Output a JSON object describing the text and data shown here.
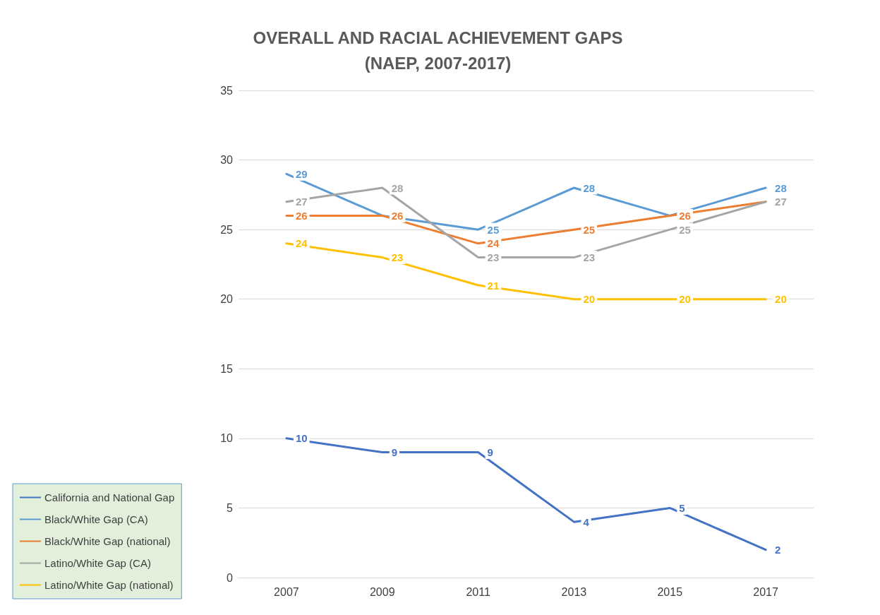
{
  "chart_data": {
    "type": "line",
    "title": "OVERALL AND RACIAL ACHIEVEMENT GAPS\n(NAEP, 2007-2017)",
    "categories": [
      "2007",
      "2009",
      "2011",
      "2013",
      "2015",
      "2017"
    ],
    "series": [
      {
        "name": "California and National Gap",
        "color": "#4472c4",
        "values": [
          10,
          9,
          9,
          4,
          5,
          2
        ],
        "value_labels": [
          "10",
          "9",
          "9",
          "4",
          "5",
          "2"
        ]
      },
      {
        "name": "Black/White Gap (CA)",
        "color": "#5b9bd5",
        "values": [
          29,
          26,
          25,
          28,
          26,
          28
        ],
        "value_labels": [
          "29",
          null,
          "25",
          "28",
          null,
          "28"
        ]
      },
      {
        "name": "Black/White Gap (national)",
        "color": "#ed7d31",
        "values": [
          26,
          26,
          24,
          25,
          26,
          27
        ],
        "value_labels": [
          "26",
          "26",
          "24",
          "25",
          "26",
          null
        ]
      },
      {
        "name": "Latino/White Gap (CA)",
        "color": "#a5a5a5",
        "values": [
          27,
          28,
          23,
          23,
          25,
          27
        ],
        "value_labels": [
          "27",
          "28",
          "23",
          "23",
          "25",
          "27"
        ]
      },
      {
        "name": "Latino/White Gap (national)",
        "color": "#ffc000",
        "values": [
          24,
          23,
          21,
          20,
          20,
          20
        ],
        "value_labels": [
          "24",
          "23",
          "21",
          "20",
          "20",
          "20"
        ]
      }
    ],
    "ylim": [
      0,
      35
    ],
    "yticks": [
      0,
      5,
      10,
      15,
      20,
      25,
      30,
      35
    ],
    "grid": "y",
    "legend": "bottom left",
    "marker": "none",
    "line_style": "solid"
  }
}
